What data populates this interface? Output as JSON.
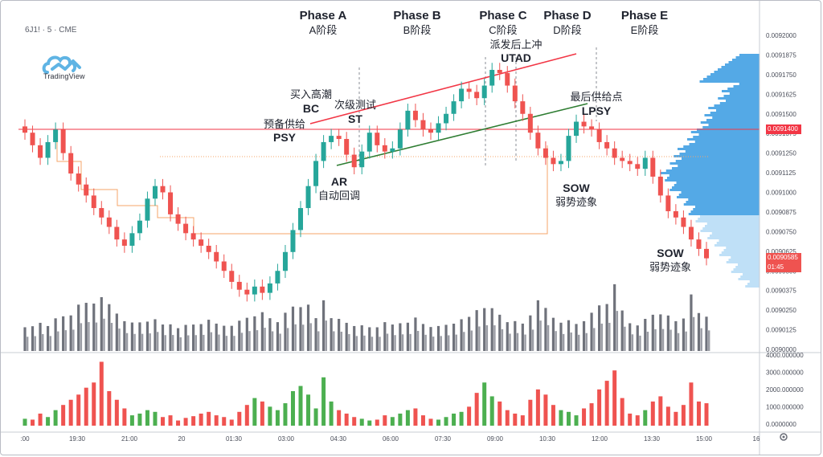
{
  "symbol_label": "6J1! · 5 · CME",
  "brand": "TradingView",
  "colors": {
    "up": "#26a69a",
    "up_green": "#4caf50",
    "down": "#ef5350",
    "profile": "#54a9e6",
    "profile_light": "#bfe0f7",
    "resistance": "#f23645",
    "wedge_support": "#2e7d32",
    "tradingrange": "#f5a46a"
  },
  "phases": [
    {
      "title": "Phase A",
      "sub": "A阶段"
    },
    {
      "title": "Phase B",
      "sub": "B阶段"
    },
    {
      "title": "Phase C",
      "sub": "C阶段"
    },
    {
      "title": "Phase D",
      "sub": "D阶段"
    },
    {
      "title": "Phase E",
      "sub": "E阶段"
    }
  ],
  "annotations": {
    "psy_cn": "预备供给",
    "psy": "PSY",
    "bc_cn": "买入高潮",
    "bc": "BC",
    "st_cn": "次级测试",
    "st": "ST",
    "ar": "AR",
    "ar_cn": "自动回调",
    "utad_cn": "派发后上冲",
    "utad": "UTAD",
    "lpsy_cn": "最后供给点",
    "lpsy": "LPSY",
    "sow1": "SOW",
    "sow1_cn": "弱势迹象",
    "sow2": "SOW",
    "sow2_cn": "弱势迹象"
  },
  "price_axis": [
    "0.0092000",
    "0.0091875",
    "0.0091750",
    "0.0091625",
    "0.0091500",
    "0.0091375",
    "0.0091250",
    "0.0091125",
    "0.0091000",
    "0.0090875",
    "0.0090750",
    "0.0090625",
    "0.0090500",
    "0.0090375",
    "0.0090250",
    "0.0090125",
    "0.0090000"
  ],
  "price_tags": {
    "resistance": "0.0091400",
    "last": "0.0090585",
    "countdown": "01:45"
  },
  "volume_axis": [
    "4000.000000",
    "3000.000000",
    "2000.000000",
    "1000.000000",
    "0.0000000"
  ],
  "time_axis": [
    ":00",
    "19:30",
    "21:00",
    "20",
    "01:30",
    "03:00",
    "04:30",
    "06:00",
    "07:30",
    "09:00",
    "10:30",
    "12:00",
    "13:30",
    "15:00",
    "16"
  ],
  "chart_data": {
    "type": "candlestick",
    "instrument": "6J1! · 5 · CME",
    "ylim": [
      0.009,
      0.0092
    ],
    "resistance_level": 0.00914,
    "last_price": 0.0090585,
    "close_series": [
      0.009138,
      0.00913,
      0.009122,
      0.009132,
      0.00914,
      0.009125,
      0.009112,
      0.009105,
      0.009098,
      0.00909,
      0.009084,
      0.009078,
      0.00907,
      0.009066,
      0.009074,
      0.009082,
      0.009096,
      0.009104,
      0.0091,
      0.009086,
      0.00908,
      0.009074,
      0.00907,
      0.009066,
      0.009062,
      0.009056,
      0.00905,
      0.009043,
      0.009038,
      0.009035,
      0.00904,
      0.009036,
      0.009042,
      0.00905,
      0.009062,
      0.009076,
      0.00909,
      0.009104,
      0.00912,
      0.009132,
      0.009136,
      0.009134,
      0.009124,
      0.009116,
      0.009126,
      0.009138,
      0.00913,
      0.009126,
      0.009128,
      0.00914,
      0.009152,
      0.009146,
      0.00914,
      0.009138,
      0.009144,
      0.00915,
      0.009158,
      0.009166,
      0.009164,
      0.00916,
      0.009168,
      0.009178,
      0.009176,
      0.009168,
      0.009158,
      0.00915,
      0.009138,
      0.009128,
      0.009122,
      0.009118,
      0.00912,
      0.009136,
      0.009145,
      0.009142,
      0.00914,
      0.009132,
      0.009128,
      0.009122,
      0.00912,
      0.009118,
      0.009115,
      0.009122,
      0.00911,
      0.009098,
      0.009088,
      0.009084,
      0.009078,
      0.00907,
      0.009064,
      0.009058
    ],
    "volume_series": [
      400,
      350,
      700,
      500,
      900,
      1200,
      1500,
      1800,
      2200,
      2500,
      3700,
      2000,
      1500,
      1000,
      600,
      700,
      900,
      800,
      500,
      600,
      300,
      450,
      550,
      700,
      800,
      600,
      500,
      350,
      800,
      1200,
      1600,
      1400,
      1100,
      900,
      1300,
      2000,
      2300,
      1800,
      1000,
      2800,
      1400,
      900,
      700,
      500,
      400,
      300,
      350,
      600,
      500,
      700,
      900,
      1000,
      600,
      400,
      350,
      500,
      700,
      800,
      1100,
      1900,
      2500,
      1700,
      1400,
      900,
      700,
      600,
      1500,
      2100,
      1800,
      1200,
      900,
      800,
      600,
      1000,
      1300,
      2100,
      2600,
      3200,
      1600,
      700,
      600,
      900,
      1400,
      1700,
      1100,
      800,
      1200,
      2500,
      1400,
      1300
    ],
    "phases": [
      "Phase A",
      "Phase B",
      "Phase C",
      "Phase D",
      "Phase E"
    ]
  }
}
